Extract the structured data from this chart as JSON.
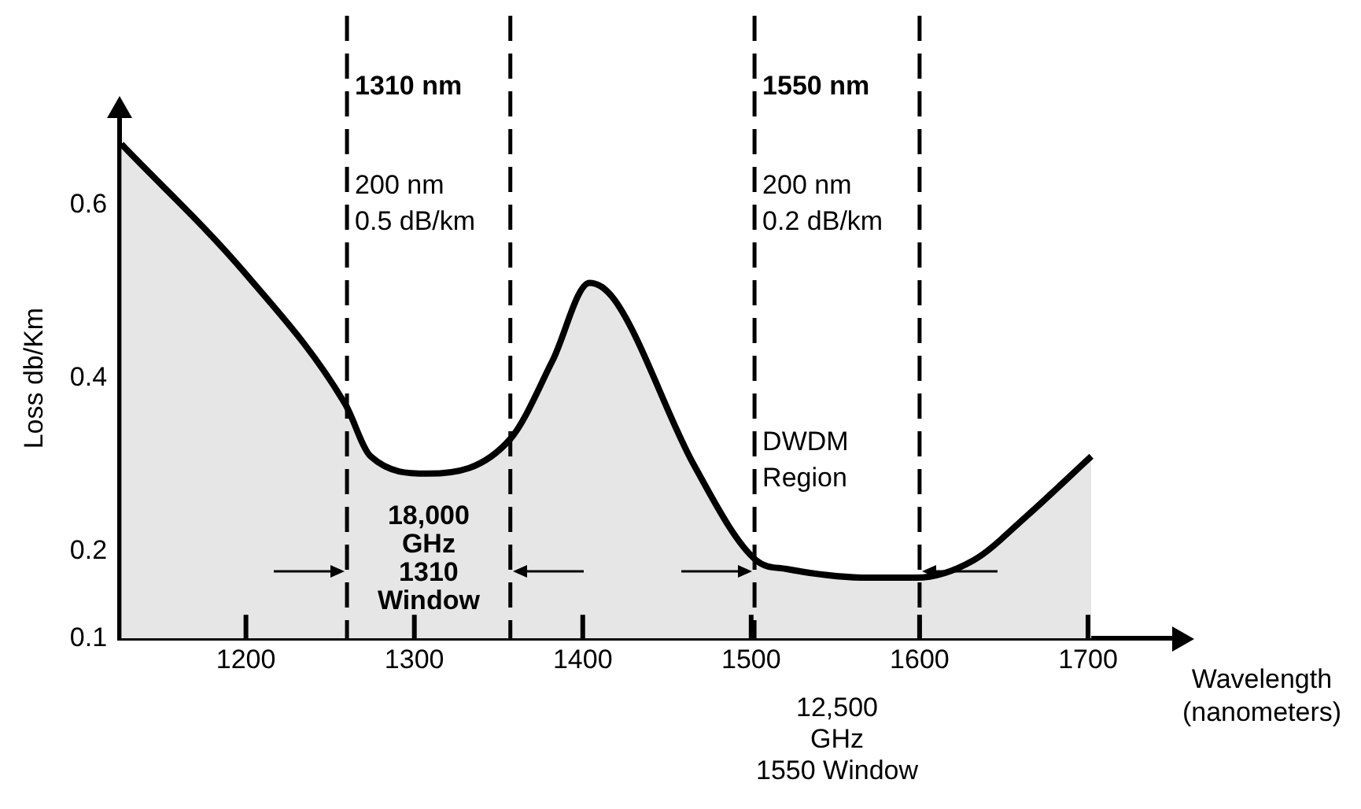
{
  "chart_data": {
    "type": "area",
    "xlabel": "Wavelength (nanometers)",
    "ylabel": "Loss db/Km",
    "x": [
      1126,
      1200,
      1259,
      1274,
      1308,
      1357,
      1382,
      1404,
      1419,
      1466,
      1503,
      1521,
      1570,
      1598,
      1632,
      1663,
      1702
    ],
    "series": [
      {
        "color": "#000000",
        "values": [
          0.67,
          0.52,
          0.37,
          0.31,
          0.29,
          0.33,
          0.42,
          0.51,
          0.49,
          0.3,
          0.19,
          0.18,
          0.17,
          0.17,
          0.19,
          0.24,
          0.31
        ]
      }
    ],
    "xlim": [
      1125,
      1750
    ],
    "xticks": [
      1200,
      1300,
      1400,
      1500,
      1600,
      1700
    ],
    "ylim": [
      0.1,
      0.7
    ],
    "yticks": [
      0.1,
      0.2,
      0.4,
      0.6
    ],
    "grid": false,
    "ref_lines": [
      {
        "axis": "x",
        "value": 1260,
        "color": "#000000",
        "line_style": "dashed"
      },
      {
        "axis": "x",
        "value": 1357,
        "color": "#000000",
        "line_style": "dashed"
      },
      {
        "axis": "x",
        "value": 1502,
        "color": "#000000",
        "line_style": "dashed"
      },
      {
        "axis": "x",
        "value": 1600,
        "color": "#000000",
        "line_style": "dashed"
      }
    ],
    "annotations": [
      "1310 nm",
      "200 nm\n0.5 dB/km",
      "1550 nm",
      "200 nm\n0.2 dB/km",
      "DWDM\nRegion",
      "18,000\nGHz\n1310\nWindow",
      "12,500\nGHz\n1550 Window"
    ]
  }
}
